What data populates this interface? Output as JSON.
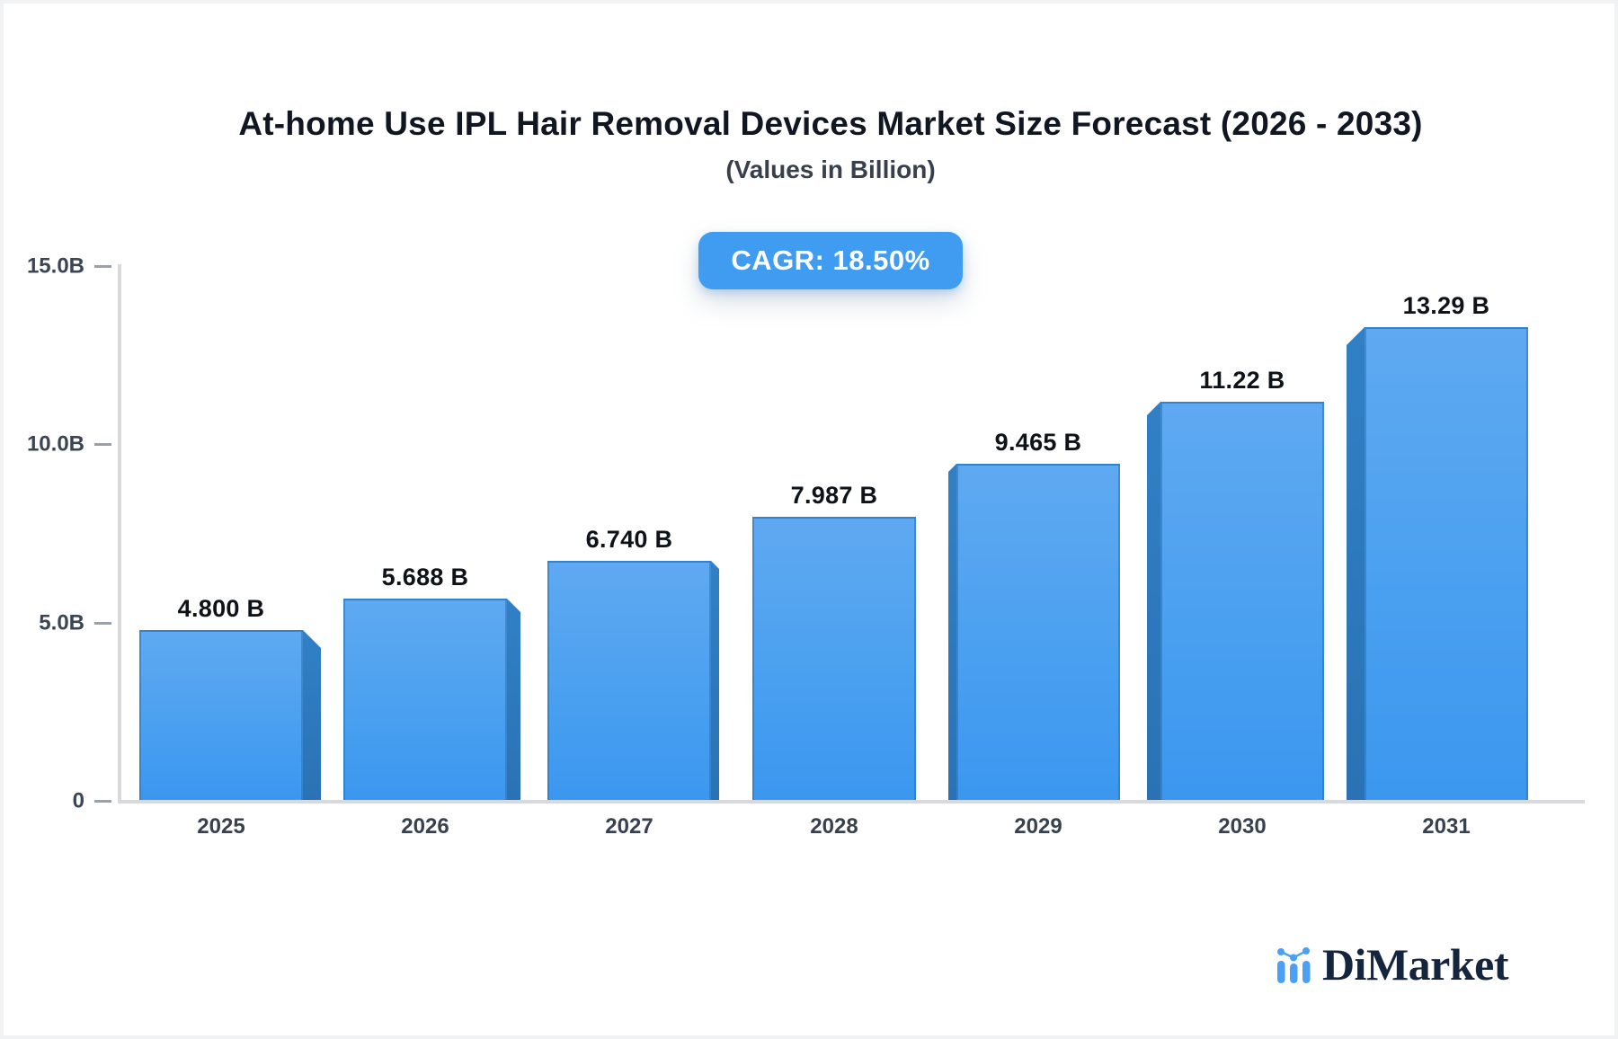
{
  "chart_data": {
    "type": "bar",
    "title": "At-home Use IPL Hair Removal Devices Market Size Forecast (2026 - 2033)",
    "subtitle": "(Values in Billion)",
    "cagr_badge": "CAGR: 18.50%",
    "categories": [
      "2025",
      "2026",
      "2027",
      "2028",
      "2029",
      "2030",
      "2031"
    ],
    "values": [
      4.8,
      5.688,
      6.74,
      7.987,
      9.465,
      11.22,
      13.29
    ],
    "value_labels": [
      "4.800 B",
      "5.688 B",
      "6.740 B",
      "7.987 B",
      "9.465 B",
      "11.22 B",
      "13.29 B"
    ],
    "unit": "Billion",
    "ylim": [
      0,
      15
    ],
    "yticks": [
      {
        "label": "15.0B",
        "value": 15
      },
      {
        "label": "10.0B",
        "value": 10
      },
      {
        "label": "5.0B",
        "value": 5
      },
      {
        "label": "0",
        "value": 0
      }
    ],
    "grid": false,
    "legend": false,
    "colors": {
      "bar_face_top": "#5FA9F1",
      "bar_face_bottom": "#3B97EF",
      "bar_side": "#2D76BA",
      "badge_bg": "#3F9CF1",
      "badge_text": "#FFFFFF",
      "axis_line": "#D7D9DD",
      "tick_mark": "#9BA1AA",
      "value_label_text": "#0E1319",
      "axis_label_text": "#3C4554"
    }
  },
  "logo": {
    "text": "DiMarket",
    "icon": "mini-bar-line-chart-icon",
    "text_color": "#16253E",
    "icon_color": "#4AA0F5"
  }
}
